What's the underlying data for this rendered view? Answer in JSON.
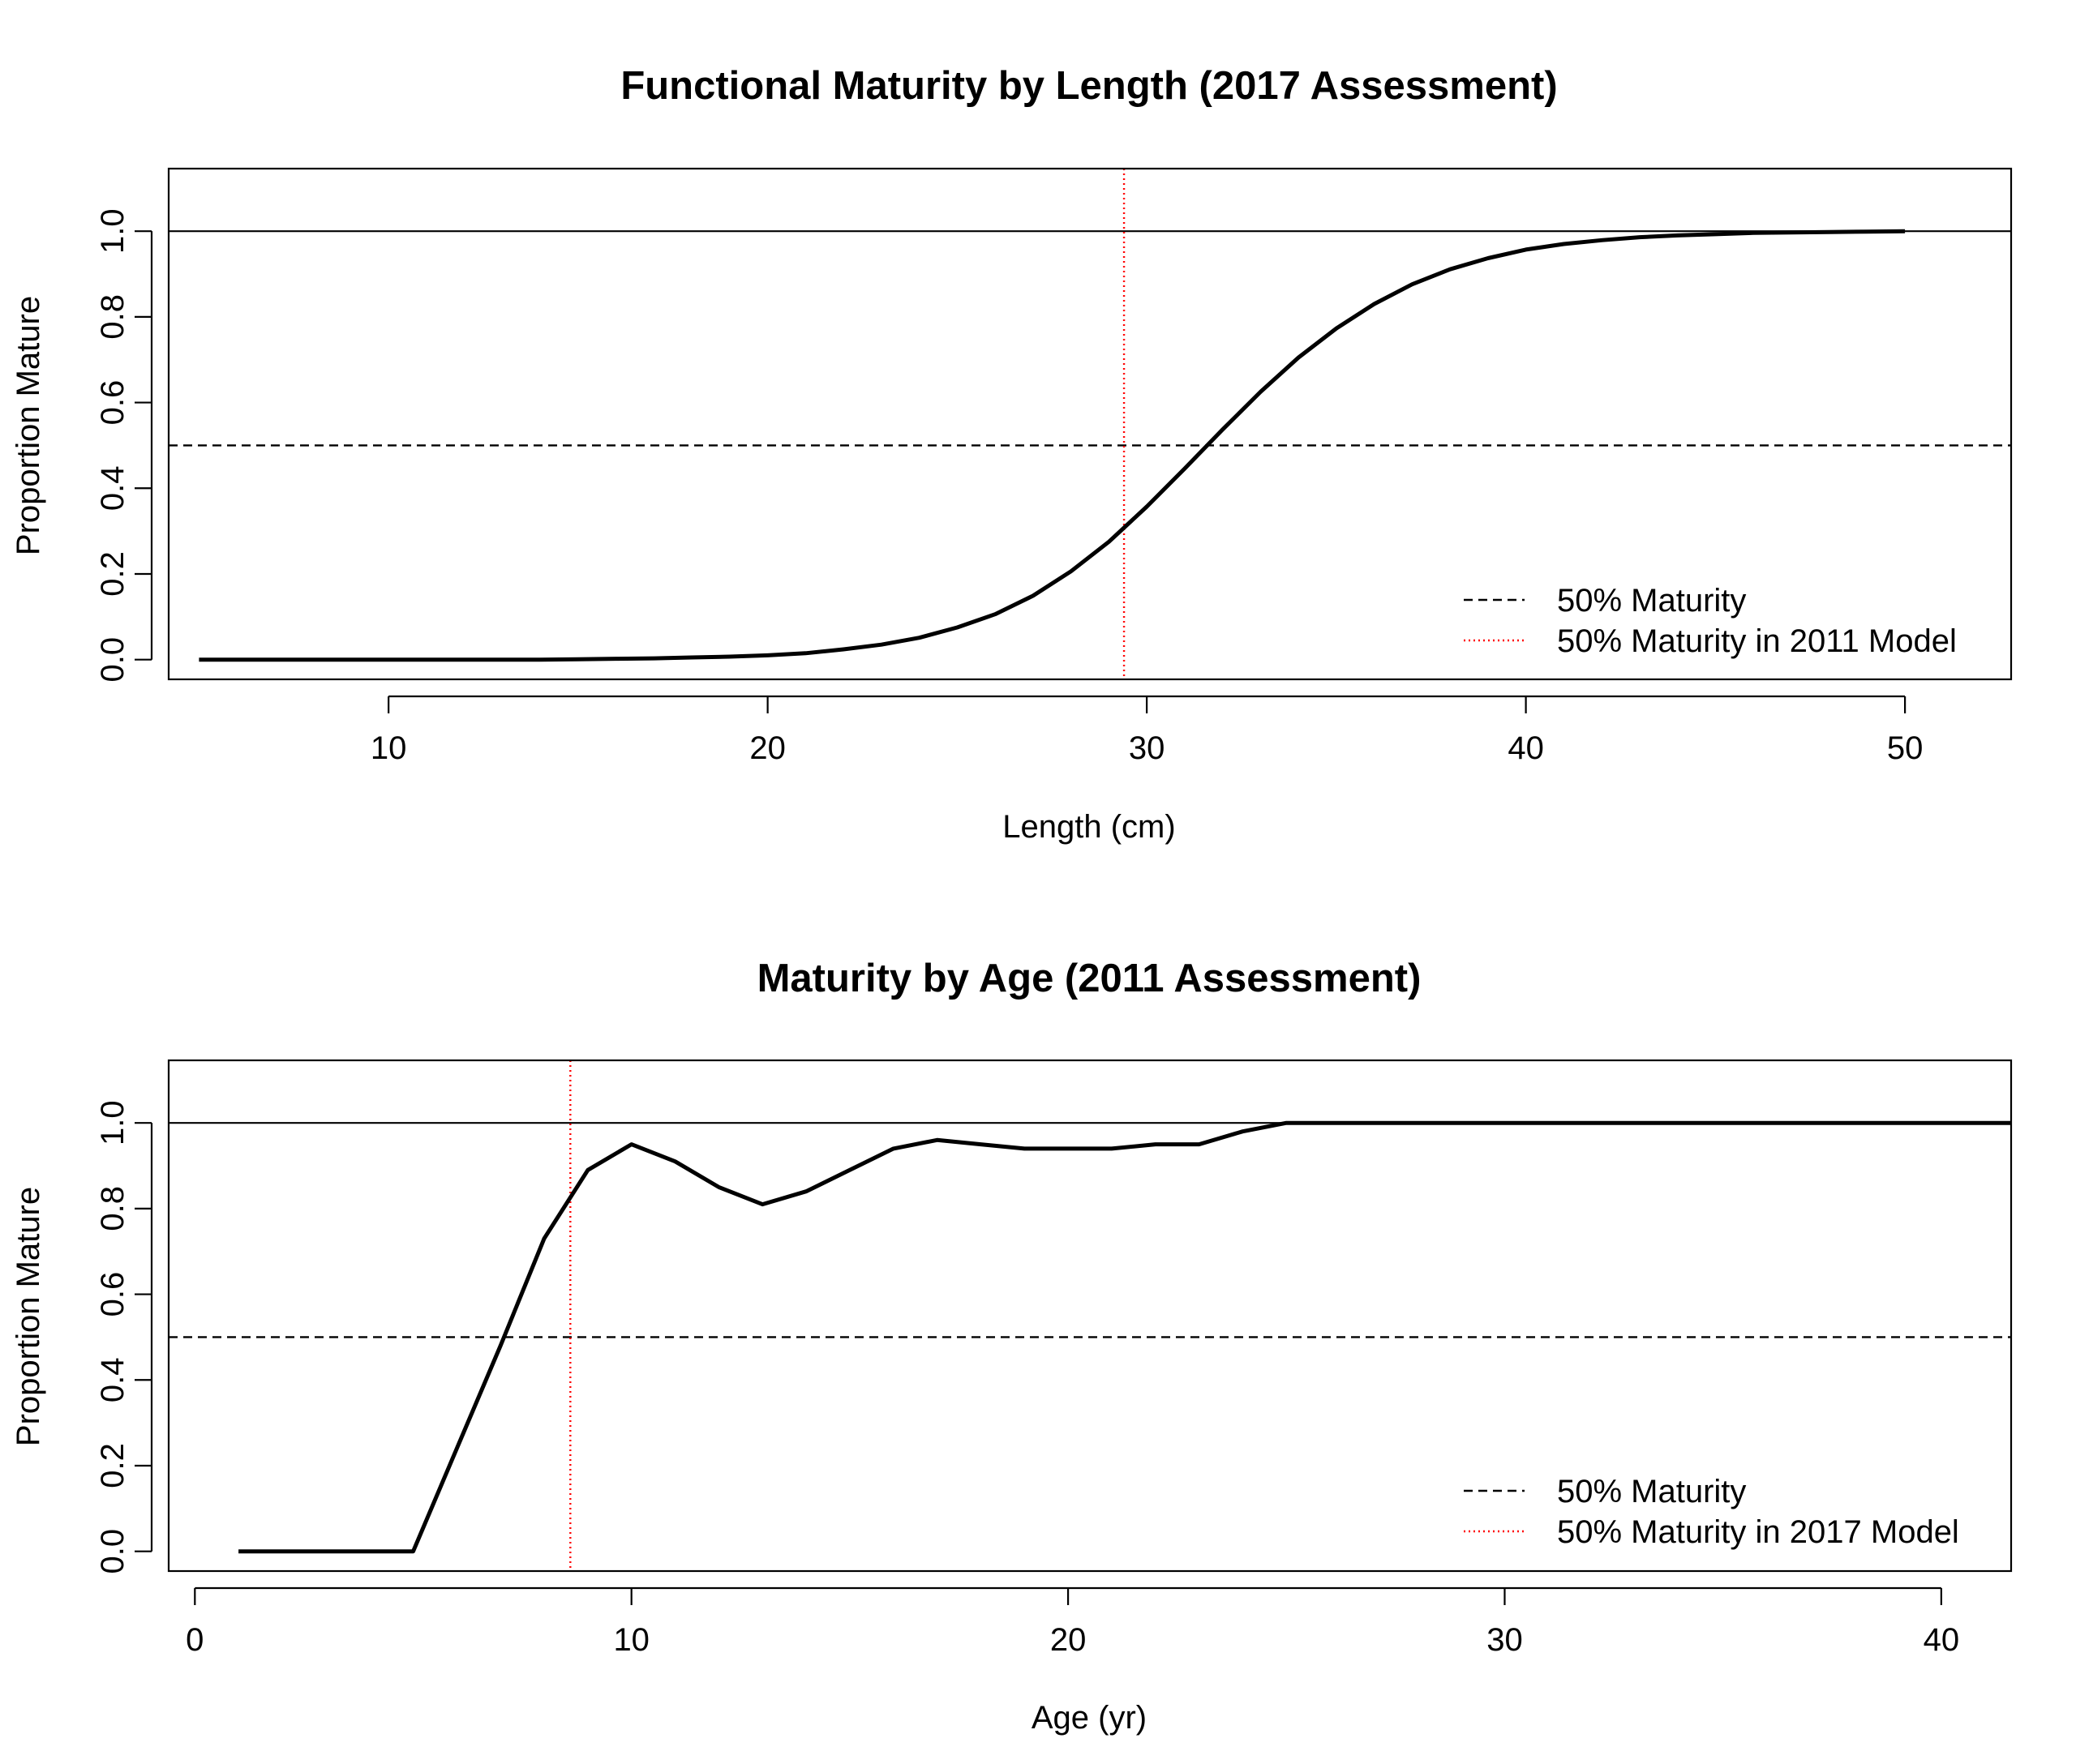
{
  "chart_data": [
    {
      "type": "line",
      "title": "Functional Maturity by Length (2017 Assessment)",
      "xlabel": "Length (cm)",
      "ylabel": "Proportion Mature",
      "xlim": [
        4.2,
        52.8
      ],
      "ylim": [
        -0.046,
        1.146
      ],
      "x_ticks": [
        10,
        20,
        30,
        40,
        50
      ],
      "y_ticks": [
        0.0,
        0.2,
        0.4,
        0.6,
        0.8,
        1.0
      ],
      "x_tick_labels": [
        "10",
        "20",
        "30",
        "40",
        "50"
      ],
      "y_tick_labels": [
        "0.0",
        "0.2",
        "0.4",
        "0.6",
        "0.8",
        "1.0"
      ],
      "grid": false,
      "legend_position": "bottom-right",
      "series": [
        {
          "x": [
            5,
            6,
            7,
            8,
            9,
            10,
            11,
            12,
            13,
            14,
            15,
            16,
            17,
            18,
            19,
            20,
            21,
            22,
            23,
            24,
            25,
            26,
            27,
            28,
            29,
            30,
            31,
            32,
            33,
            34,
            35,
            36,
            37,
            38,
            39,
            40,
            41,
            42,
            43,
            44,
            45,
            46,
            47,
            48,
            49,
            50
          ],
          "values": [
            0.0,
            0.0,
            0.0,
            0.0,
            0.0,
            0.0,
            0.0,
            0.0,
            0.0,
            0.0,
            0.001,
            0.002,
            0.003,
            0.005,
            0.007,
            0.01,
            0.015,
            0.024,
            0.035,
            0.051,
            0.075,
            0.106,
            0.149,
            0.206,
            0.275,
            0.357,
            0.446,
            0.537,
            0.625,
            0.705,
            0.773,
            0.83,
            0.876,
            0.911,
            0.937,
            0.957,
            0.97,
            0.979,
            0.986,
            0.99,
            0.993,
            0.996,
            0.997,
            0.998,
            0.999,
            1.0
          ]
        }
      ],
      "reference_lines": [
        {
          "orientation": "horizontal",
          "value": 1.0,
          "style": "solid",
          "color": "#000000"
        },
        {
          "orientation": "horizontal",
          "value": 0.5,
          "style": "dashed",
          "color": "#000000",
          "legend": "50% Maturity"
        },
        {
          "orientation": "vertical",
          "value": 29.4,
          "style": "dotted",
          "color": "#ff0000",
          "legend": "50% Maturity in 2011 Model"
        }
      ],
      "legend": [
        {
          "label": "50% Maturity",
          "style": "dashed",
          "color": "#000000"
        },
        {
          "label": "50% Maturity in 2011 Model",
          "style": "dotted",
          "color": "#ff0000"
        }
      ]
    },
    {
      "type": "line",
      "title": "Maturity by Age (2011 Assessment)",
      "xlabel": "Age (yr)",
      "ylabel": "Proportion Mature",
      "xlim": [
        -0.6,
        41.6
      ],
      "ylim": [
        -0.046,
        1.146
      ],
      "x_ticks": [
        0,
        10,
        20,
        30,
        40
      ],
      "y_ticks": [
        0.0,
        0.2,
        0.4,
        0.6,
        0.8,
        1.0
      ],
      "x_tick_labels": [
        "0",
        "10",
        "20",
        "30",
        "40"
      ],
      "y_tick_labels": [
        "0.0",
        "0.2",
        "0.4",
        "0.6",
        "0.8",
        "1.0"
      ],
      "grid": false,
      "legend_position": "bottom-right",
      "series": [
        {
          "x": [
            1,
            2,
            3,
            4,
            5,
            6,
            7,
            8,
            9,
            10,
            11,
            12,
            13,
            14,
            15,
            16,
            17,
            18,
            19,
            20,
            21,
            22,
            23,
            24,
            25,
            26,
            27,
            28,
            29,
            30,
            31,
            32,
            33,
            34,
            35,
            36,
            37,
            38,
            39,
            40,
            41,
            42
          ],
          "values": [
            0.0,
            0.0,
            0.0,
            0.0,
            0.0,
            0.24,
            0.48,
            0.73,
            0.89,
            0.95,
            0.91,
            0.85,
            0.81,
            0.84,
            0.89,
            0.94,
            0.96,
            0.95,
            0.94,
            0.94,
            0.94,
            0.95,
            0.95,
            0.98,
            1.0,
            1.0,
            1.0,
            1.0,
            1.0,
            1.0,
            1.0,
            1.0,
            1.0,
            1.0,
            1.0,
            1.0,
            1.0,
            1.0,
            1.0,
            1.0,
            1.0,
            1.0
          ]
        }
      ],
      "reference_lines": [
        {
          "orientation": "horizontal",
          "value": 1.0,
          "style": "solid",
          "color": "#000000"
        },
        {
          "orientation": "horizontal",
          "value": 0.5,
          "style": "dashed",
          "color": "#000000",
          "legend": "50% Maturity"
        },
        {
          "orientation": "vertical",
          "value": 8.6,
          "style": "dotted",
          "color": "#ff0000",
          "legend": "50% Maturity in 2017 Model"
        }
      ],
      "legend": [
        {
          "label": "50% Maturity",
          "style": "dashed",
          "color": "#000000"
        },
        {
          "label": "50% Maturity in 2017 Model",
          "style": "dotted",
          "color": "#ff0000"
        }
      ]
    }
  ]
}
